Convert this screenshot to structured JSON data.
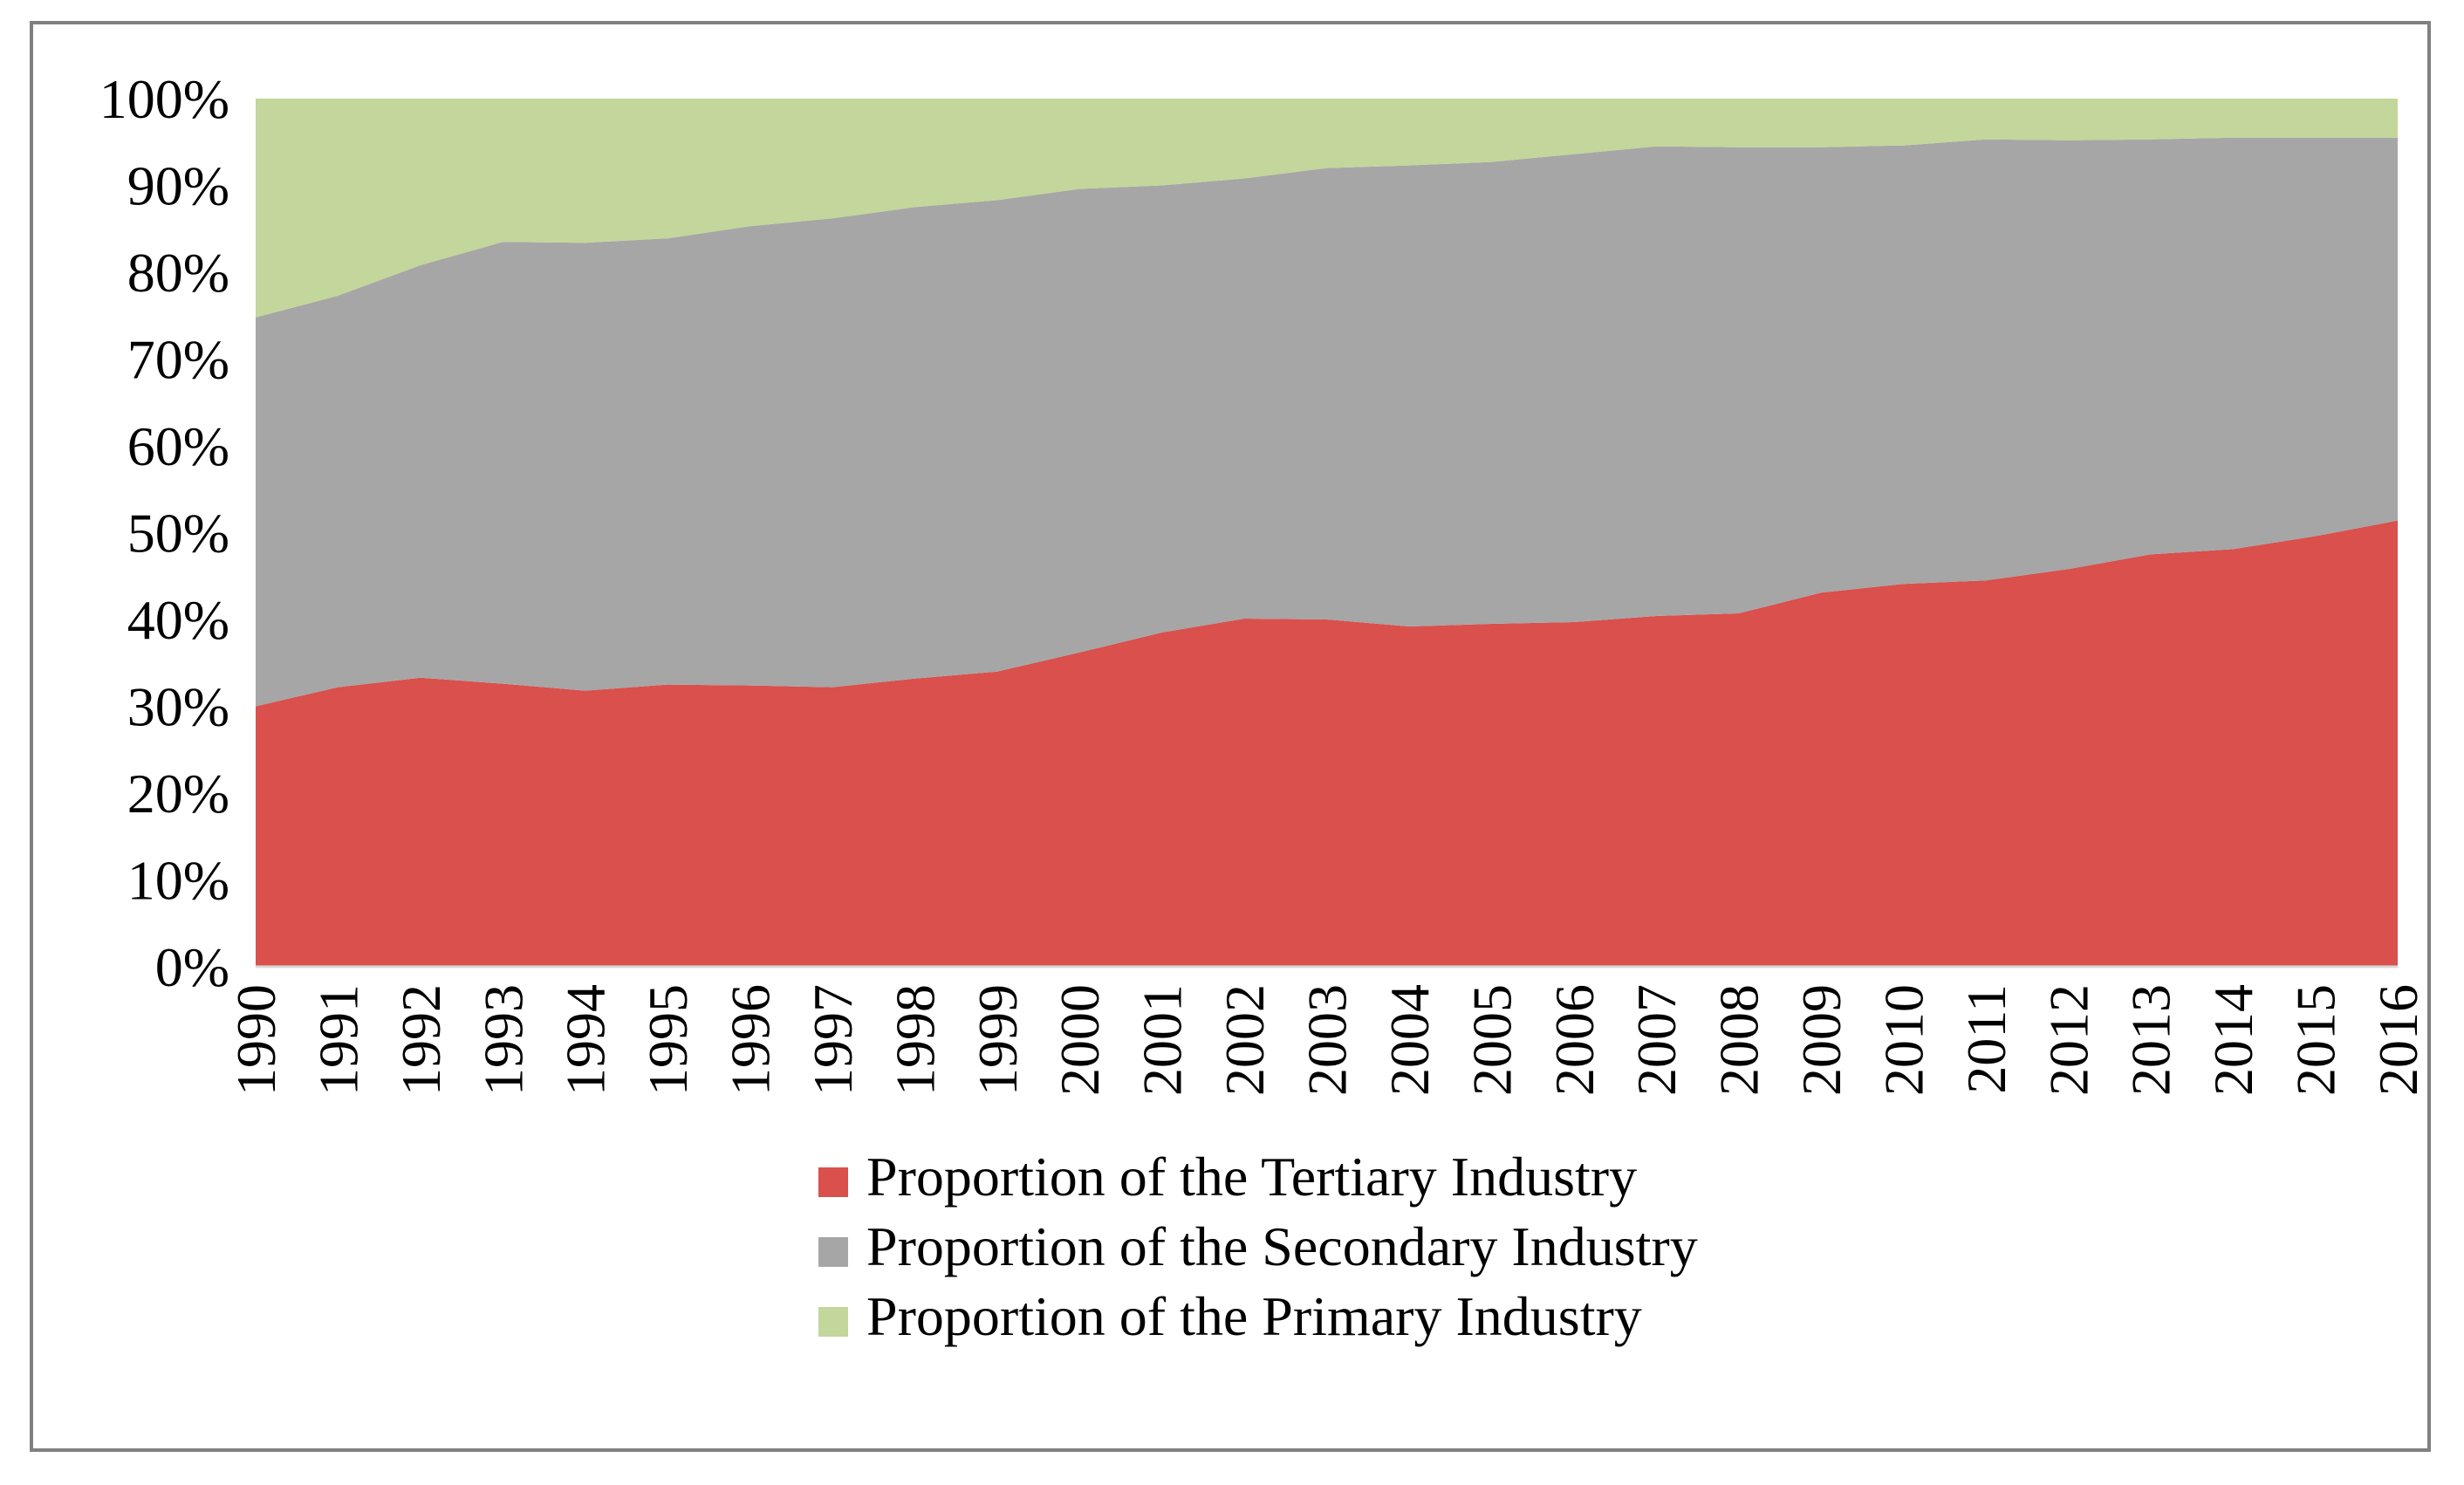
{
  "chart_data": {
    "type": "area",
    "stacked": true,
    "percent": true,
    "title": "",
    "xlabel": "",
    "ylabel": "",
    "ylim": [
      0,
      100
    ],
    "yticks": [
      "0%",
      "10%",
      "20%",
      "30%",
      "40%",
      "50%",
      "60%",
      "70%",
      "80%",
      "90%",
      "100%"
    ],
    "grid": false,
    "legend_position": "bottom",
    "x": [
      "1990",
      "1991",
      "1992",
      "1993",
      "1994",
      "1995",
      "1996",
      "1997",
      "1998",
      "1999",
      "2000",
      "2001",
      "2002",
      "2003",
      "2004",
      "2005",
      "2006",
      "2007",
      "2008",
      "2009",
      "2010",
      "2011",
      "2012",
      "2013",
      "2014",
      "2015",
      "2016"
    ],
    "series": [
      {
        "name": "Proportion of the Tertiary Industry",
        "color": "#d9504d",
        "values": [
          30.0,
          32.2,
          33.3,
          32.6,
          31.8,
          32.5,
          32.4,
          32.2,
          33.2,
          34.0,
          36.2,
          38.5,
          40.1,
          40.0,
          39.2,
          39.5,
          39.7,
          40.4,
          40.7,
          43.1,
          44.1,
          44.5,
          45.8,
          47.5,
          48.1,
          49.6,
          51.4
        ]
      },
      {
        "name": "Proportion of the Secondary Industry",
        "color": "#a6a6a6",
        "values": [
          44.8,
          45.1,
          47.5,
          50.9,
          51.6,
          51.4,
          52.9,
          54.0,
          54.3,
          54.3,
          53.4,
          51.5,
          50.7,
          52.0,
          53.1,
          53.2,
          53.9,
          54.1,
          53.7,
          51.3,
          50.5,
          50.8,
          49.4,
          47.8,
          47.4,
          45.9,
          44.1
        ]
      },
      {
        "name": "Proportion of the Primary Industry",
        "color": "#c3d69b",
        "values": [
          25.2,
          22.7,
          19.2,
          16.5,
          16.6,
          16.1,
          14.7,
          13.8,
          12.5,
          11.7,
          10.4,
          10.0,
          9.2,
          8.0,
          7.7,
          7.3,
          6.4,
          5.5,
          5.6,
          5.6,
          5.4,
          4.7,
          4.8,
          4.7,
          4.5,
          4.5,
          4.5
        ]
      }
    ],
    "legend_order": [
      0,
      1,
      2
    ]
  }
}
